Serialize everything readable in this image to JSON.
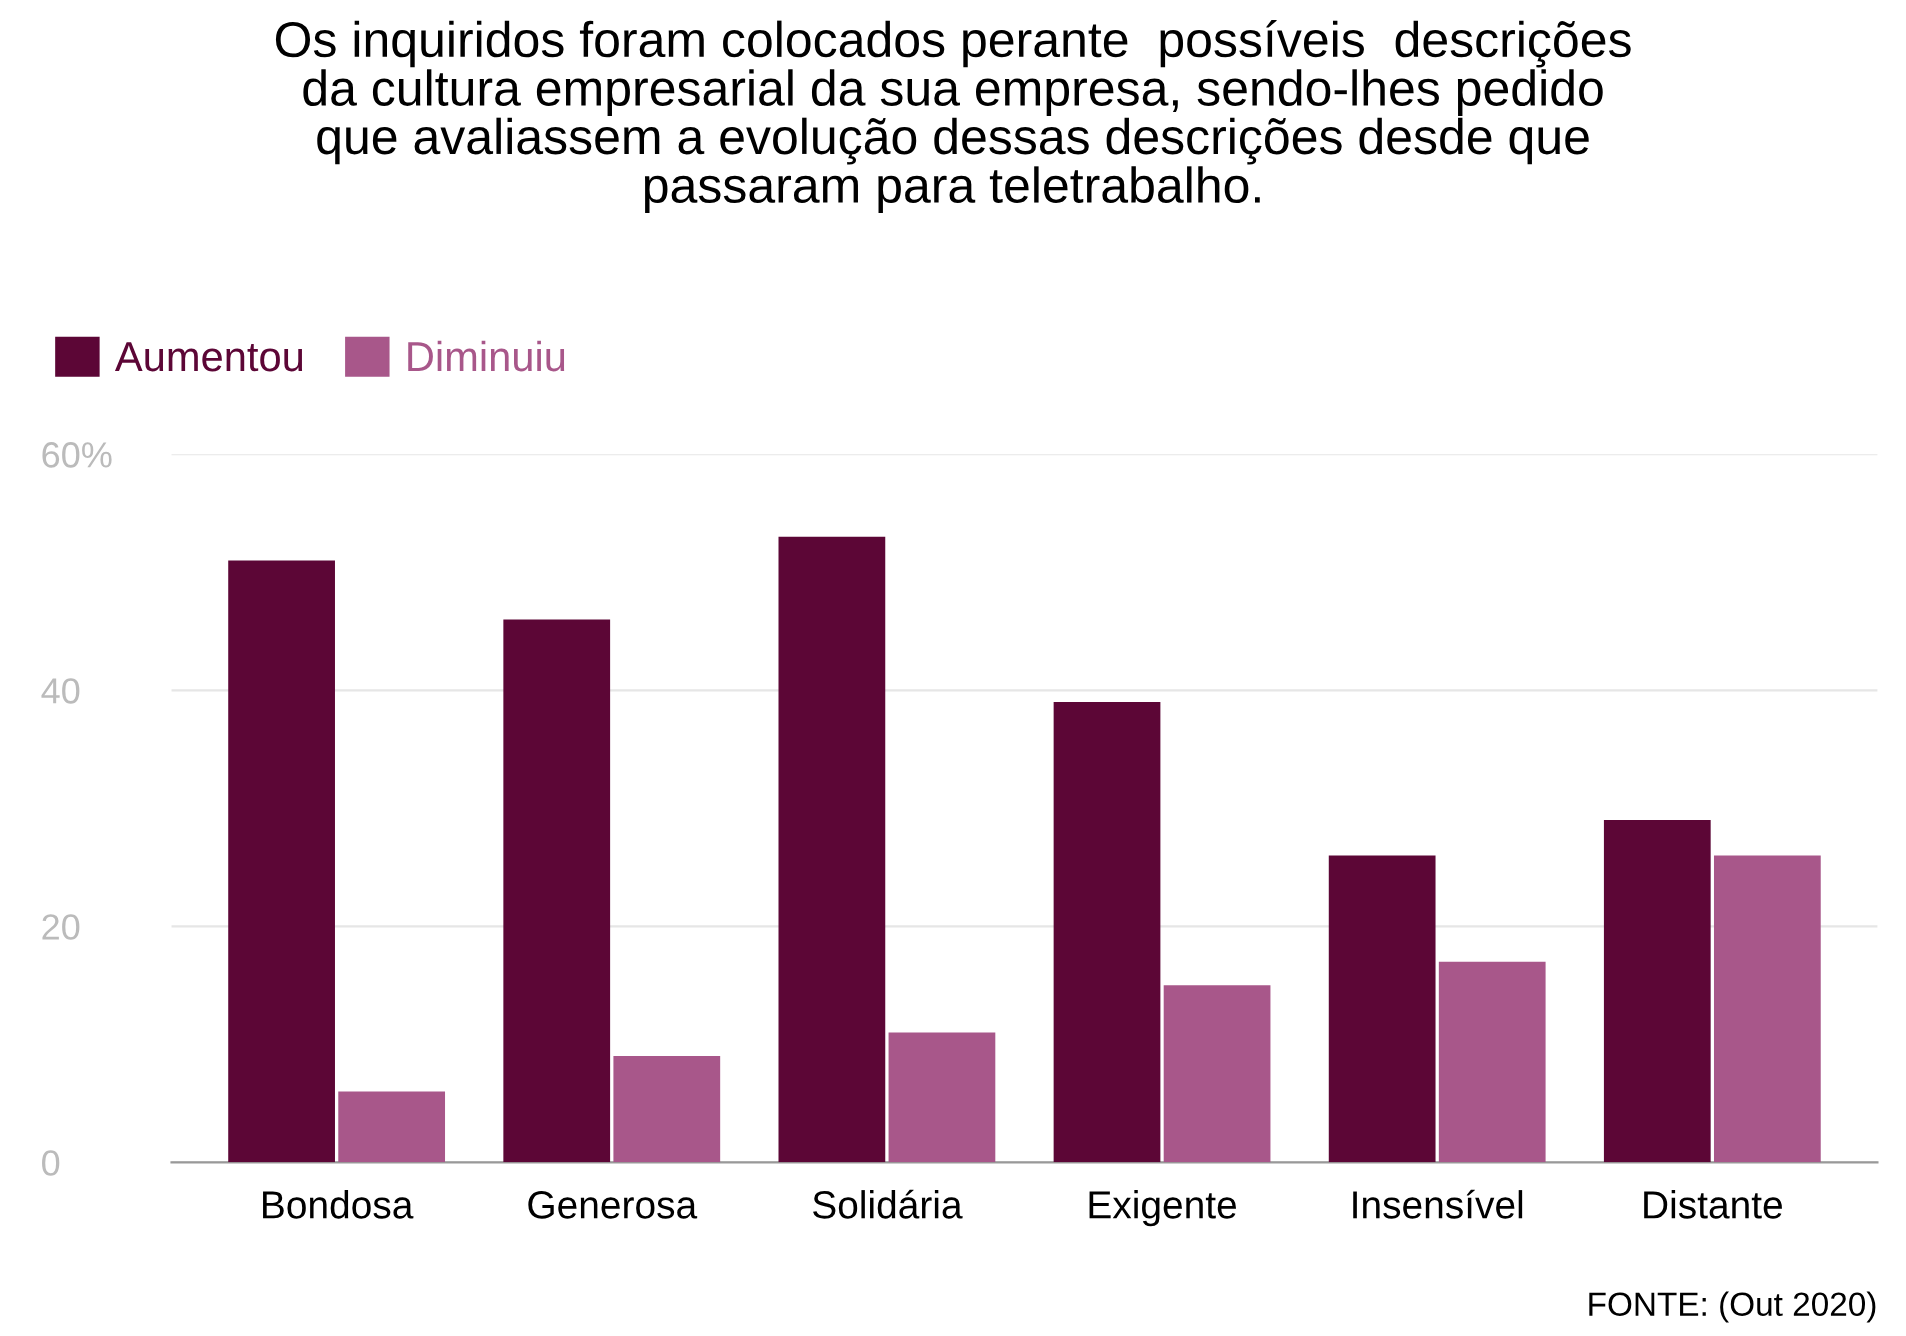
{
  "chart_data": {
    "type": "bar",
    "title": "Os inquiridos foram colocados perante  possíveis  descrições\nda cultura empresarial da sua empresa, sendo-lhes pedido\nque avaliassem a evolução dessas descrições desde que\npassaram para teletrabalho.",
    "categories": [
      "Bondosa",
      "Generosa",
      "Solidária",
      "Exigente",
      "Insensível",
      "Distante"
    ],
    "series": [
      {
        "name": "Aumentou",
        "color": "#5c0636",
        "values": [
          51,
          46,
          53,
          39,
          26,
          29
        ]
      },
      {
        "name": "Diminuiu",
        "color": "#a8578a",
        "values": [
          6,
          9,
          11,
          15,
          17,
          26
        ]
      }
    ],
    "ylim": [
      0,
      60
    ],
    "yticks": [
      0,
      20,
      40,
      {
        "value": 60,
        "label": "60%"
      }
    ],
    "grid": "y",
    "legend": "top left",
    "annotations": [
      "FONTE: (Out 2020)"
    ]
  }
}
